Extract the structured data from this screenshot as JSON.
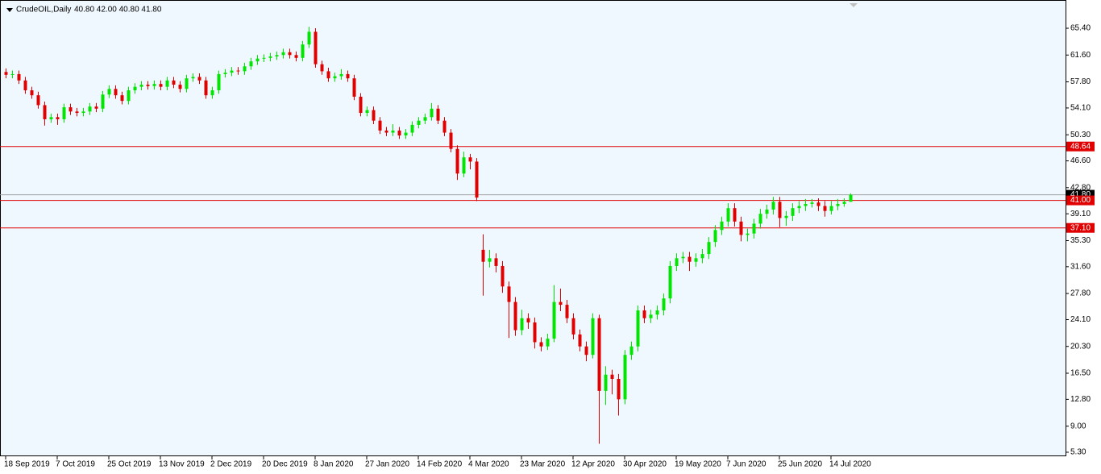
{
  "chart_data": {
    "type": "candlestick",
    "title": "CrudeOIL,Daily",
    "subtitle": "40.80 42.00 40.80 41.80",
    "up_color": "#00e600",
    "down_color": "#e00000",
    "background": "#f0f8ff",
    "grid": false,
    "ylim": [
      4.73,
      69.06
    ],
    "yticks": [
      {
        "value": 65.4,
        "label": "65.40"
      },
      {
        "value": 61.6,
        "label": "61.60"
      },
      {
        "value": 57.8,
        "label": "57.80"
      },
      {
        "value": 54.1,
        "label": "54.10"
      },
      {
        "value": 50.3,
        "label": "50.30"
      },
      {
        "value": 46.6,
        "label": "46.60"
      },
      {
        "value": 42.8,
        "label": "42.80"
      },
      {
        "value": 39.1,
        "label": "39.10"
      },
      {
        "value": 35.3,
        "label": "35.30"
      },
      {
        "value": 31.6,
        "label": "31.60"
      },
      {
        "value": 27.8,
        "label": "27.80"
      },
      {
        "value": 24.1,
        "label": "24.10"
      },
      {
        "value": 20.3,
        "label": "20.30"
      },
      {
        "value": 16.5,
        "label": "16.50"
      },
      {
        "value": 12.8,
        "label": "12.80"
      },
      {
        "value": 9,
        "label": "9.00"
      },
      {
        "value": 5.3,
        "label": "5.30"
      }
    ],
    "levels": [
      {
        "value": 48.64,
        "label": "48.64",
        "color": "#e00000"
      },
      {
        "value": 41,
        "label": "41.00",
        "color": "#e00000"
      },
      {
        "value": 37.1,
        "label": "37.10",
        "color": "#e00000"
      }
    ],
    "current_price": {
      "value": 41.8,
      "label": "41.80",
      "color": "#000000",
      "line_color": "#a0a0a0"
    },
    "categories": [
      "18 Sep 2019",
      null,
      null,
      null,
      null,
      null,
      null,
      null,
      "7 Oct 2019",
      null,
      null,
      null,
      null,
      null,
      null,
      null,
      "25 Oct 2019",
      null,
      null,
      null,
      null,
      null,
      null,
      null,
      "13 Nov 2019",
      null,
      null,
      null,
      null,
      null,
      null,
      null,
      "2 Dec 2019",
      null,
      null,
      null,
      null,
      null,
      null,
      null,
      "20 Dec 2019",
      null,
      null,
      null,
      null,
      null,
      null,
      null,
      "8 Jan 2020",
      null,
      null,
      null,
      null,
      null,
      null,
      null,
      "27 Jan 2020",
      null,
      null,
      null,
      null,
      null,
      null,
      null,
      "14 Feb 2020",
      null,
      null,
      null,
      null,
      null,
      null,
      null,
      "4 Mar 2020",
      null,
      null,
      null,
      null,
      null,
      null,
      null,
      "23 Mar 2020",
      null,
      null,
      null,
      null,
      null,
      null,
      null,
      "12 Apr 2020",
      null,
      null,
      null,
      null,
      null,
      null,
      null,
      "30 Apr 2020",
      null,
      null,
      null,
      null,
      null,
      null,
      null,
      "19 May 2020",
      null,
      null,
      null,
      null,
      null,
      null,
      null,
      "7 Jun 2020",
      null,
      null,
      null,
      null,
      null,
      null,
      null,
      "25 Jun 2020",
      null,
      null,
      null,
      null,
      null,
      null,
      null,
      "14 Jul 2020",
      null,
      null,
      null
    ],
    "open": [
      59.2,
      58.8,
      58.9,
      58.0,
      56.6,
      55.9,
      54.5,
      52.5,
      52.8,
      52.5,
      54.2,
      53.6,
      53.4,
      53.6,
      54.3,
      54.0,
      56.0,
      56.8,
      55.9,
      55.1,
      56.6,
      57.1,
      57.4,
      57.2,
      57.5,
      57.1,
      58.0,
      57.4,
      56.8,
      58.3,
      58.5,
      58.0,
      55.9,
      56.6,
      58.9,
      59.1,
      59.4,
      59.3,
      60.0,
      60.7,
      61.1,
      61.2,
      61.4,
      61.6,
      62.0,
      61.6,
      61.2,
      63.1,
      64.9,
      60.3,
      59.3,
      58.3,
      58.6,
      58.9,
      58.3,
      55.7,
      53.4,
      53.8,
      52.3,
      50.9,
      50.6,
      50.9,
      50.2,
      50.6,
      51.7,
      52.3,
      52.8,
      54.0,
      52.3,
      50.6,
      48.3,
      44.8,
      47.1,
      46.5,
      34.0,
      32.3,
      32.8,
      31.7,
      28.8,
      26.6,
      22.6,
      24.3,
      23.7,
      20.9,
      20.3,
      21.4,
      26.6,
      26.2,
      24.3,
      22.0,
      20.3,
      19.1,
      24.3,
      14.0,
      16.3,
      15.7,
      12.8,
      19.1,
      20.3,
      25.4,
      24.3,
      24.8,
      25.4,
      27.1,
      31.7,
      32.8,
      33.0,
      32.3,
      32.8,
      33.4,
      35.1,
      36.8,
      38.0,
      39.9,
      38.0,
      36.1,
      36.3,
      37.7,
      39.1,
      39.7,
      40.8,
      38.5,
      38.8,
      39.9,
      40.2,
      40.5,
      40.7,
      40.2,
      39.5,
      40.2,
      40.5,
      40.8
    ],
    "high": [
      59.7,
      59.4,
      59.4,
      58.5,
      57.1,
      56.4,
      55.0,
      53.3,
      53.3,
      54.7,
      54.7,
      54.1,
      54.1,
      54.8,
      54.8,
      56.5,
      57.3,
      57.3,
      56.4,
      57.1,
      57.6,
      57.9,
      57.9,
      58.0,
      58.0,
      58.5,
      58.5,
      57.9,
      58.8,
      59.0,
      59.0,
      58.5,
      57.1,
      59.4,
      59.6,
      59.9,
      59.9,
      60.5,
      61.2,
      61.6,
      61.7,
      61.9,
      62.1,
      62.5,
      62.5,
      62.1,
      63.6,
      65.6,
      65.4,
      60.8,
      59.8,
      59.1,
      59.6,
      59.4,
      58.8,
      56.2,
      54.3,
      54.3,
      52.8,
      51.4,
      51.8,
      51.4,
      51.1,
      52.2,
      52.8,
      53.3,
      54.8,
      54.5,
      52.8,
      51.1,
      48.8,
      47.9,
      47.6,
      47.0,
      36.2,
      34.0,
      33.5,
      32.4,
      29.5,
      27.3,
      25.5,
      25.0,
      24.4,
      21.6,
      22.1,
      29.0,
      28.5,
      26.9,
      25.0,
      22.7,
      21.0,
      25.0,
      24.8,
      17.5,
      17.0,
      16.4,
      19.8,
      21.0,
      26.1,
      26.1,
      25.5,
      26.1,
      27.8,
      32.4,
      33.5,
      33.7,
      33.7,
      33.5,
      34.1,
      35.8,
      37.5,
      38.7,
      40.6,
      40.6,
      38.7,
      37.0,
      38.4,
      39.8,
      40.4,
      41.5,
      41.5,
      39.5,
      40.6,
      40.9,
      41.2,
      41.2,
      41.3,
      40.9,
      40.9,
      41.2,
      41.3,
      42.0
    ],
    "low": [
      58.3,
      58.3,
      57.5,
      56.1,
      55.4,
      54.0,
      51.6,
      52.0,
      51.7,
      52.0,
      53.1,
      52.9,
      52.9,
      53.1,
      53.5,
      53.5,
      55.5,
      55.4,
      54.6,
      54.6,
      56.1,
      56.6,
      56.7,
      56.7,
      56.6,
      56.6,
      56.9,
      56.3,
      56.3,
      57.8,
      57.5,
      55.4,
      55.4,
      56.1,
      58.4,
      58.6,
      58.8,
      58.8,
      59.5,
      60.2,
      60.6,
      60.7,
      60.9,
      61.1,
      61.1,
      60.7,
      60.7,
      62.6,
      59.8,
      58.8,
      57.8,
      57.8,
      58.1,
      57.8,
      55.2,
      52.9,
      52.9,
      51.8,
      50.4,
      50.1,
      50.1,
      49.7,
      49.7,
      50.1,
      51.2,
      51.8,
      52.3,
      51.8,
      50.1,
      47.8,
      43.9,
      44.3,
      45.4,
      40.9,
      27.5,
      31.5,
      30.8,
      27.9,
      21.5,
      21.8,
      21.9,
      22.8,
      20.0,
      19.6,
      19.8,
      20.9,
      25.3,
      23.6,
      21.3,
      19.6,
      18.2,
      18.6,
      6.5,
      12.0,
      13.5,
      10.5,
      12.1,
      18.4,
      19.6,
      23.6,
      23.6,
      24.1,
      24.7,
      26.4,
      31.0,
      32.1,
      31.0,
      31.6,
      32.1,
      32.7,
      34.4,
      36.1,
      37.3,
      37.3,
      35.2,
      35.2,
      35.6,
      37.0,
      38.4,
      39.0,
      37.2,
      37.4,
      38.1,
      39.2,
      39.5,
      40.0,
      39.5,
      38.7,
      39.0,
      39.6,
      40.1,
      40.8
    ],
    "close": [
      58.8,
      58.9,
      58.0,
      56.6,
      55.9,
      54.5,
      52.5,
      52.8,
      52.5,
      54.2,
      53.6,
      53.4,
      53.6,
      54.3,
      54.0,
      56.0,
      56.8,
      55.9,
      55.1,
      56.6,
      57.1,
      57.4,
      57.2,
      57.5,
      57.1,
      58.0,
      57.4,
      56.8,
      58.3,
      58.5,
      58.0,
      55.9,
      56.6,
      58.9,
      59.1,
      59.4,
      59.3,
      60.0,
      60.7,
      61.1,
      61.2,
      61.4,
      61.6,
      62.0,
      61.6,
      61.2,
      63.1,
      64.9,
      60.3,
      59.3,
      58.3,
      58.6,
      58.9,
      58.3,
      55.7,
      53.4,
      53.8,
      52.3,
      50.9,
      50.6,
      50.9,
      50.2,
      50.6,
      51.7,
      52.3,
      52.8,
      54.0,
      52.3,
      50.6,
      48.3,
      44.8,
      47.1,
      46.5,
      41.4,
      32.3,
      32.8,
      31.7,
      28.8,
      26.6,
      22.6,
      24.3,
      23.7,
      20.9,
      20.3,
      21.4,
      26.6,
      26.2,
      24.3,
      22.0,
      20.3,
      19.1,
      24.3,
      14.0,
      16.3,
      15.7,
      12.8,
      19.1,
      20.3,
      25.4,
      24.3,
      24.8,
      25.4,
      27.1,
      31.7,
      32.8,
      33.0,
      32.3,
      32.8,
      33.4,
      35.1,
      36.8,
      38.0,
      39.9,
      38.0,
      36.1,
      36.3,
      37.7,
      39.1,
      39.7,
      40.8,
      38.5,
      38.8,
      39.9,
      40.2,
      40.5,
      40.7,
      40.2,
      39.5,
      40.2,
      40.5,
      40.8,
      41.8
    ]
  }
}
